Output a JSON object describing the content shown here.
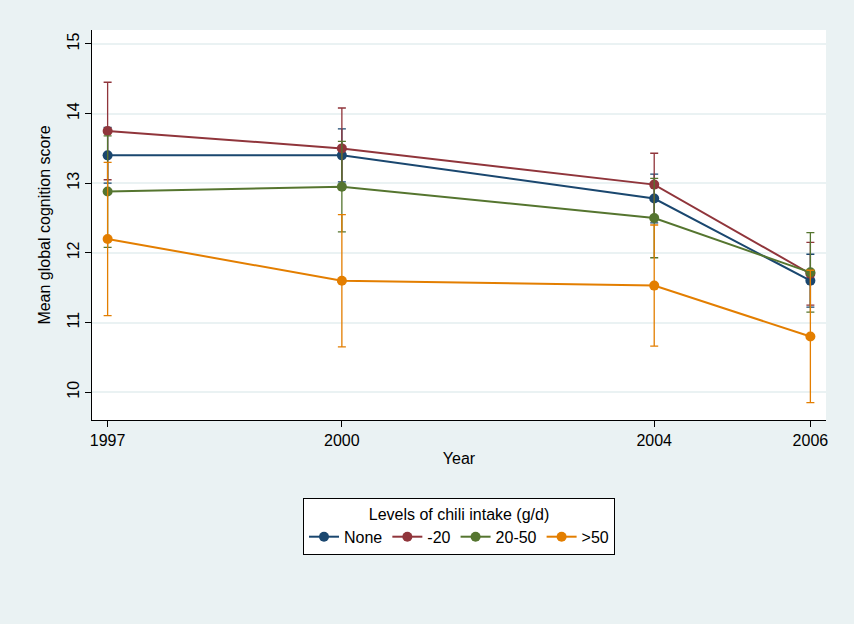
{
  "chart_data": {
    "type": "line",
    "x_label": "Year",
    "y_label": "Mean global cognition score",
    "legend_title": "Levels of chili intake (g/d)",
    "x": [
      1997,
      2000,
      2004,
      2006
    ],
    "series": [
      {
        "name": "None",
        "color": "#1a476f",
        "values": [
          13.4,
          13.4,
          12.78,
          11.6
        ],
        "errors": [
          0.4,
          0.38,
          0.35,
          0.38
        ]
      },
      {
        "name": "-20",
        "color": "#90353b",
        "values": [
          13.75,
          13.5,
          12.98,
          11.7
        ],
        "errors": [
          0.7,
          0.58,
          0.45,
          0.45
        ]
      },
      {
        "name": "20-50",
        "color": "#55752f",
        "values": [
          12.88,
          12.95,
          12.5,
          11.72
        ],
        "errors": [
          0.8,
          0.65,
          0.57,
          0.57
        ]
      },
      {
        "name": ">50",
        "color": "#e37e00",
        "values": [
          12.2,
          11.6,
          11.53,
          10.8
        ],
        "errors": [
          1.1,
          0.95,
          0.87,
          0.95
        ]
      }
    ],
    "xlim": [
      1996.8,
      2006.2
    ],
    "xticks": [
      1997,
      2000,
      2004,
      2006
    ],
    "ylim": [
      9.6,
      15.2
    ],
    "yticks": [
      10,
      11,
      12,
      13,
      14,
      15
    ],
    "grid": true,
    "legend": "bottom",
    "marker": "circle"
  }
}
